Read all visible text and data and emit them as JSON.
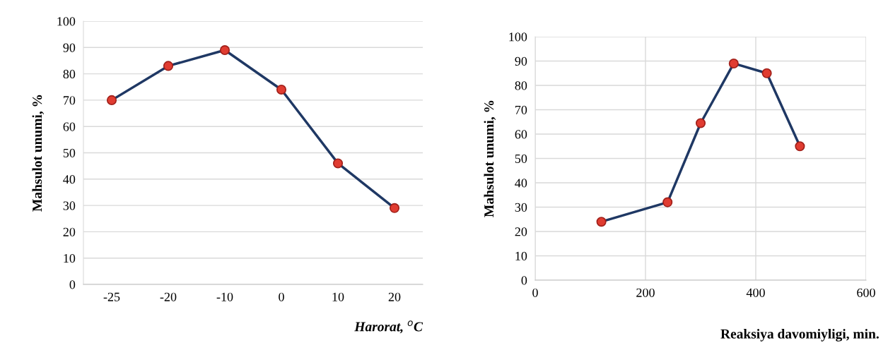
{
  "chart_data": [
    {
      "type": "line",
      "categories": [
        "-25",
        "-20",
        "-10",
        "0",
        "10",
        "20"
      ],
      "ylabel": "Mahsulot unumi, %",
      "xlabel": "Harorat, $^{o}$C",
      "ylim": [
        0,
        100
      ],
      "yticks": [
        0,
        10,
        20,
        30,
        40,
        50,
        60,
        70,
        80,
        90,
        100
      ],
      "grid": "y",
      "marker": "circle",
      "line_style": "solid",
      "series": [
        {
          "color": "#1f3864",
          "colors": [
            "#e03c31",
            "#e03c31",
            "#e03c31",
            "#e03c31",
            "#e03c31",
            "#e03c31"
          ],
          "values": [
            70,
            83,
            89,
            74,
            46,
            29
          ]
        }
      ]
    },
    {
      "type": "line",
      "x": [
        120,
        240,
        300,
        360,
        420,
        480
      ],
      "ylabel": "Mahsulot unumi, %",
      "xlabel": "Reaksiya davomiyligi, min.",
      "xlim": [
        0,
        600
      ],
      "xticks": [
        0,
        200,
        400,
        600
      ],
      "ylim": [
        0,
        100
      ],
      "yticks": [
        0,
        10,
        20,
        30,
        40,
        50,
        60,
        70,
        80,
        90,
        100
      ],
      "grid": true,
      "marker": "circle",
      "line_style": "solid",
      "series": [
        {
          "color": "#1f3864",
          "colors": [
            "#e03c31",
            "#e03c31",
            "#e03c31",
            "#e03c31",
            "#e03c31",
            "#e03c31"
          ],
          "values": [
            24,
            32,
            64.5,
            89,
            85,
            55
          ]
        }
      ]
    }
  ]
}
